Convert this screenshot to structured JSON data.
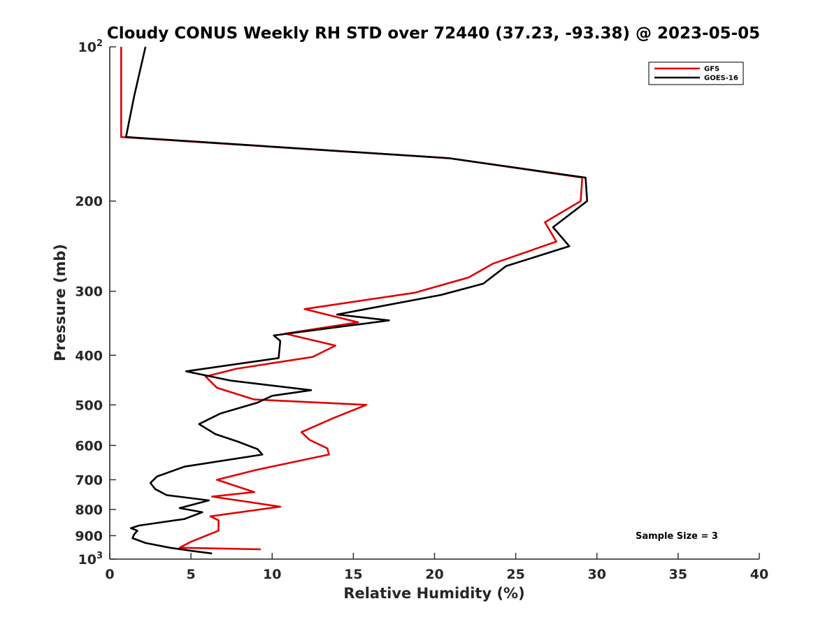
{
  "chart_data": {
    "type": "line",
    "title": "Cloudy CONUS Weekly RH STD over 72440 (37.23, -93.38) @ 2023-05-05",
    "xlabel": "Relative Humidity (%)",
    "ylabel": "Pressure (mb)",
    "xlim": [
      0,
      40
    ],
    "ylim": [
      100,
      1000
    ],
    "y_scale": "log",
    "y_reversed": true,
    "grid": false,
    "legend_position": "top-right",
    "x_ticks": [
      "0",
      "5",
      "10",
      "15",
      "20",
      "25",
      "30",
      "35",
      "40"
    ],
    "y_ticks": [
      {
        "value": 100,
        "base": "10",
        "exp": "2"
      },
      {
        "value": 200,
        "label": "200"
      },
      {
        "value": 300,
        "label": "300"
      },
      {
        "value": 400,
        "label": "400"
      },
      {
        "value": 500,
        "label": "500"
      },
      {
        "value": 600,
        "label": "600"
      },
      {
        "value": 700,
        "label": "700"
      },
      {
        "value": 800,
        "label": "800"
      },
      {
        "value": 900,
        "label": "900"
      },
      {
        "value": 1000,
        "base": "10",
        "exp": "3"
      }
    ],
    "annotation": "Sample Size = 3",
    "series": [
      {
        "name": "GFS",
        "color": "#e00000",
        "points": [
          [
            0.7,
            100
          ],
          [
            0.7,
            125
          ],
          [
            0.7,
            150
          ],
          [
            20.9,
            165
          ],
          [
            29.1,
            180
          ],
          [
            29.0,
            200
          ],
          [
            26.8,
            220
          ],
          [
            27.5,
            240
          ],
          [
            23.6,
            265
          ],
          [
            22.1,
            282
          ],
          [
            18.8,
            302
          ],
          [
            12.0,
            325
          ],
          [
            15.3,
            345
          ],
          [
            10.8,
            363
          ],
          [
            13.9,
            383
          ],
          [
            12.5,
            403
          ],
          [
            7.8,
            425
          ],
          [
            5.9,
            440
          ],
          [
            6.6,
            463
          ],
          [
            8.9,
            488
          ],
          [
            15.8,
            500
          ],
          [
            13.8,
            530
          ],
          [
            11.8,
            565
          ],
          [
            12.3,
            585
          ],
          [
            13.4,
            608
          ],
          [
            13.5,
            625
          ],
          [
            9.0,
            670
          ],
          [
            6.6,
            700
          ],
          [
            8.9,
            740
          ],
          [
            6.3,
            755
          ],
          [
            10.5,
            790
          ],
          [
            6.2,
            825
          ],
          [
            6.7,
            840
          ],
          [
            6.7,
            880
          ],
          [
            5.0,
            925
          ],
          [
            4.3,
            950
          ],
          [
            9.3,
            957
          ]
        ]
      },
      {
        "name": "GOES-16",
        "color": "#000000",
        "points": [
          [
            2.2,
            100
          ],
          [
            1.5,
            125
          ],
          [
            1.0,
            150
          ],
          [
            20.9,
            165
          ],
          [
            29.3,
            180
          ],
          [
            29.4,
            200
          ],
          [
            27.3,
            225
          ],
          [
            28.3,
            245
          ],
          [
            24.4,
            268
          ],
          [
            23.0,
            290
          ],
          [
            20.4,
            305
          ],
          [
            14.0,
            333
          ],
          [
            17.2,
            342
          ],
          [
            10.1,
            366
          ],
          [
            10.5,
            375
          ],
          [
            10.4,
            405
          ],
          [
            4.7,
            430
          ],
          [
            7.4,
            448
          ],
          [
            12.4,
            468
          ],
          [
            10.0,
            480
          ],
          [
            9.1,
            495
          ],
          [
            6.8,
            520
          ],
          [
            5.5,
            545
          ],
          [
            6.5,
            570
          ],
          [
            7.9,
            590
          ],
          [
            9.1,
            610
          ],
          [
            9.4,
            625
          ],
          [
            4.6,
            660
          ],
          [
            2.9,
            690
          ],
          [
            2.5,
            710
          ],
          [
            2.8,
            730
          ],
          [
            3.5,
            750
          ],
          [
            6.1,
            768
          ],
          [
            4.3,
            795
          ],
          [
            5.7,
            810
          ],
          [
            4.6,
            835
          ],
          [
            1.8,
            860
          ],
          [
            1.3,
            870
          ],
          [
            1.7,
            880
          ],
          [
            1.5,
            895
          ],
          [
            1.4,
            910
          ],
          [
            2.2,
            930
          ],
          [
            3.7,
            950
          ],
          [
            5.2,
            965
          ],
          [
            6.3,
            975
          ]
        ]
      }
    ]
  }
}
